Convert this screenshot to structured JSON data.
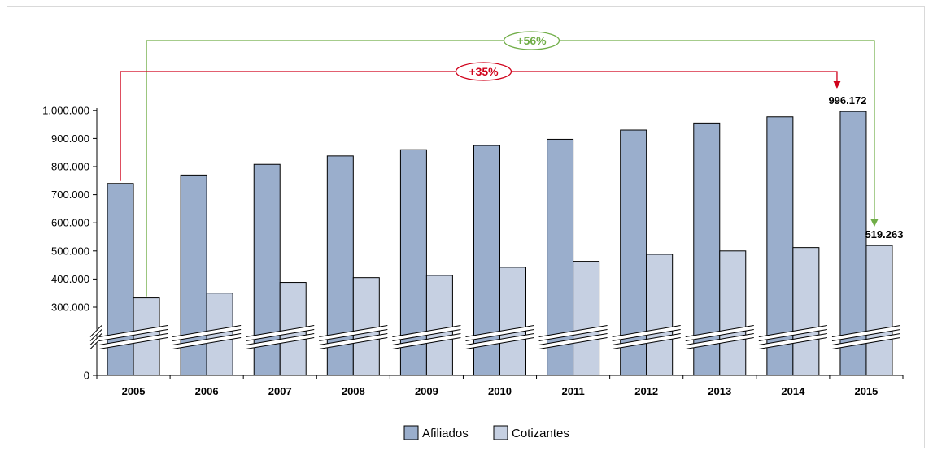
{
  "chart_data": {
    "type": "bar",
    "categories": [
      "2005",
      "2006",
      "2007",
      "2008",
      "2009",
      "2010",
      "2011",
      "2012",
      "2013",
      "2014",
      "2015"
    ],
    "series": [
      {
        "name": "Afiliados",
        "color": "#9aaecc",
        "values": [
          740000,
          770000,
          808000,
          838000,
          860000,
          875000,
          897000,
          930000,
          955000,
          977000,
          996172
        ]
      },
      {
        "name": "Cotizantes",
        "color": "#c6d0e2",
        "values": [
          333000,
          350000,
          388000,
          405000,
          413000,
          442000,
          463000,
          488000,
          500000,
          512000,
          519263
        ]
      }
    ],
    "y_ticks": [
      {
        "value": 0,
        "label": "0"
      },
      {
        "value": 300000,
        "label": "300.000"
      },
      {
        "value": 400000,
        "label": "400.000"
      },
      {
        "value": 500000,
        "label": "500.000"
      },
      {
        "value": 600000,
        "label": "600.000"
      },
      {
        "value": 700000,
        "label": "700.000"
      },
      {
        "value": 800000,
        "label": "800.000"
      },
      {
        "value": 900000,
        "label": "900.000"
      },
      {
        "value": 1000000,
        "label": "1.000.000"
      }
    ],
    "axis_break": true,
    "data_labels": [
      {
        "series": "Afiliados",
        "category": "2015",
        "text": "996.172"
      },
      {
        "series": "Cotizantes",
        "category": "2015",
        "text": "519.263"
      }
    ],
    "annotations": [
      {
        "text": "+56%",
        "color": "#70ad47",
        "from": "Cotizantes 2005",
        "to": "Cotizantes 2015"
      },
      {
        "text": "+35%",
        "color": "#d0021b",
        "from": "Afiliados 2005",
        "to": "Afiliados 2015"
      }
    ],
    "legend": {
      "position": "bottom",
      "items": [
        "Afiliados",
        "Cotizantes"
      ]
    },
    "grid": false
  }
}
